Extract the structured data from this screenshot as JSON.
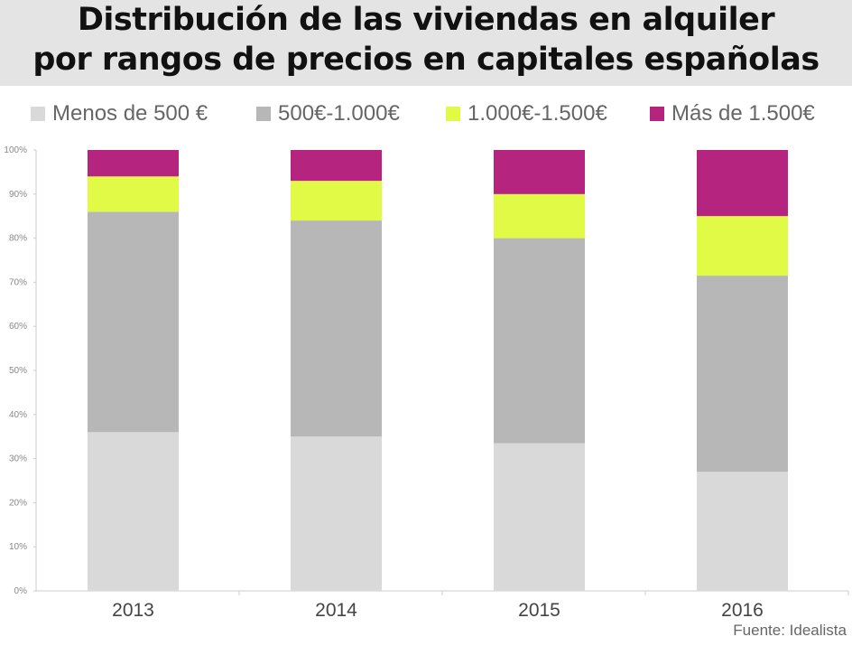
{
  "chart_data": {
    "type": "bar",
    "stacked": true,
    "title_lines": [
      "Distribución de las viviendas en alquiler",
      "por rangos de precios en capitales españolas"
    ],
    "categories": [
      "2013",
      "2014",
      "2015",
      "2016"
    ],
    "series": [
      {
        "name": "Menos de 500 €",
        "color": "#d9d9d9",
        "values": [
          36,
          35,
          33.5,
          27
        ]
      },
      {
        "name": "500€-1.000€",
        "color": "#b7b7b7",
        "values": [
          50,
          49,
          46.5,
          44.5
        ]
      },
      {
        "name": "1.000€-1.500€",
        "color": "#e1fa46",
        "values": [
          8,
          9,
          10,
          13.5
        ]
      },
      {
        "name": "Más de 1.500€",
        "color": "#b5247f",
        "values": [
          6,
          7,
          10,
          15
        ]
      }
    ],
    "ylim": [
      0,
      100
    ],
    "yticks": [
      "0%",
      "10%",
      "20%",
      "30%",
      "40%",
      "50%",
      "60%",
      "70%",
      "80%",
      "90%",
      "100%"
    ],
    "grid": false,
    "legend": "top",
    "source": "Fuente: Idealista"
  }
}
